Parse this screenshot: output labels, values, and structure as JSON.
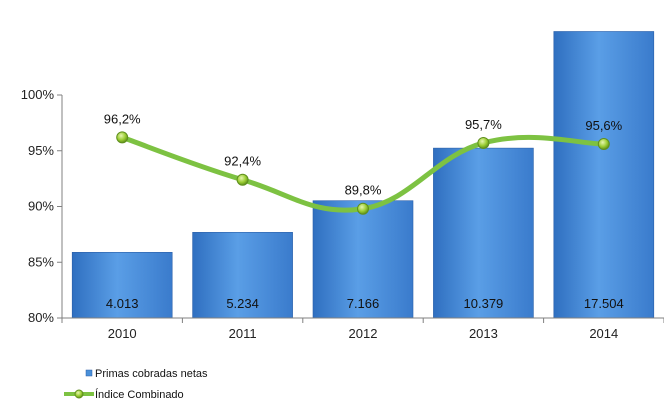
{
  "chart_data": {
    "type": "bar",
    "categories": [
      "2010",
      "2011",
      "2012",
      "2013",
      "2014"
    ],
    "series": [
      {
        "name": "Primas cobradas netas",
        "type": "bar",
        "values": [
          4013,
          5234,
          7166,
          10379,
          17504
        ],
        "labels": [
          "4.013",
          "5.234",
          "7.166",
          "10.379",
          "17.504"
        ],
        "color": "#4a90d9",
        "axis": "secondary-hidden"
      },
      {
        "name": "Índice Combinado",
        "type": "line",
        "values": [
          96.2,
          92.4,
          89.8,
          95.7,
          95.6
        ],
        "labels": [
          "96,2%",
          "92,4%",
          "89,8%",
          "95,7%",
          "95,6%"
        ],
        "color": "#7dc242",
        "marker_color": "#9acd32",
        "axis": "primary"
      }
    ],
    "yaxis": {
      "ylim": [
        80,
        100
      ],
      "ticks": [
        80,
        85,
        90,
        95,
        100
      ],
      "tick_labels": [
        "80%",
        "85%",
        "90%",
        "95%",
        "100%"
      ]
    },
    "bar_axis_range": [
      0,
      19000
    ],
    "title": "",
    "xlabel": "",
    "ylabel": "",
    "grid": false,
    "legend_position": "bottom-left"
  }
}
